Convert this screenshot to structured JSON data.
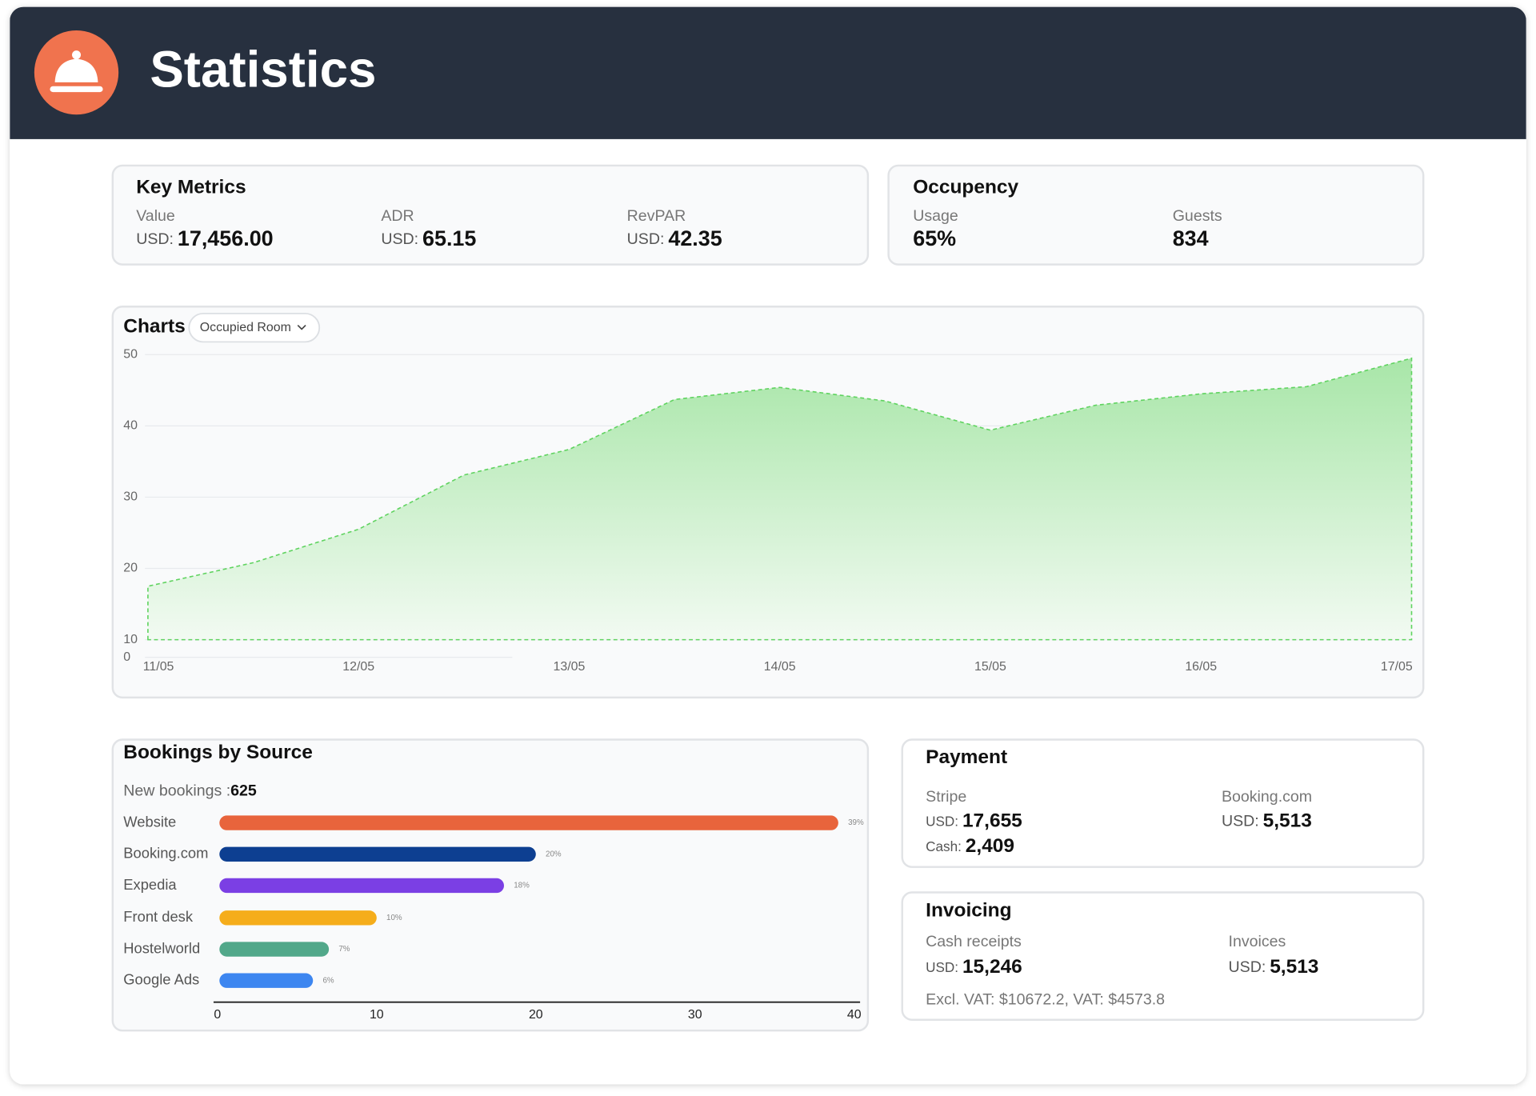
{
  "header": {
    "title": "Statistics"
  },
  "key_metrics": {
    "title": "Key Metrics",
    "items": [
      {
        "label": "Value",
        "currency": "USD:",
        "value": "17,456.00"
      },
      {
        "label": "ADR",
        "currency": "USD:",
        "value": "65.15"
      },
      {
        "label": "RevPAR",
        "currency": "USD:",
        "value": "42.35"
      }
    ]
  },
  "occupancy": {
    "title": "Occupency",
    "items": [
      {
        "label": "Usage",
        "value": "65%"
      },
      {
        "label": "Guests",
        "value": "834"
      }
    ]
  },
  "chart_data": [
    {
      "type": "area",
      "title": "Charts",
      "filter": "Occupied Room",
      "categories": [
        "11/05",
        null,
        "12/05",
        null,
        "13/05",
        null,
        "14/05",
        null,
        "15/05",
        null,
        "16/05",
        null,
        "17/05"
      ],
      "series": [
        {
          "color": "#5fd35f",
          "values": [
            17.5,
            20.8,
            25.5,
            33.1,
            36.7,
            43.7,
            45.4,
            43.5,
            39.4,
            42.9,
            44.5,
            45.5,
            49.5
          ]
        }
      ],
      "ylim": [
        10,
        50
      ],
      "yticks": [
        10,
        20,
        30,
        40,
        50
      ],
      "y_origin_label": "0",
      "grid": true
    },
    {
      "type": "hbar",
      "title": "Bookings by Source",
      "subtitle_label": "New bookings :",
      "subtitle_value": "625",
      "categories": [
        "Website",
        "Booking.com",
        "Expedia",
        "Front desk",
        "Hostelworld",
        "Google Ads"
      ],
      "values": [
        39,
        20,
        18,
        10,
        7,
        6
      ],
      "value_labels": [
        "39%",
        "20%",
        "18%",
        "10%",
        "7%",
        "6%"
      ],
      "colors": [
        "#e8643c",
        "#0d3f91",
        "#7b3fe4",
        "#f5ad1b",
        "#52a88a",
        "#3d86f0"
      ],
      "xlim": [
        0,
        40
      ],
      "xticks": [
        0,
        10,
        20,
        30,
        40
      ]
    }
  ],
  "payment": {
    "title": "Payment",
    "stripe": {
      "label": "Stripe",
      "currency": "USD:",
      "value": "17,655",
      "cash_label": "Cash:",
      "cash_value": "2,409"
    },
    "booking": {
      "label": "Booking.com",
      "currency": "USD:",
      "value": "5,513"
    }
  },
  "invoicing": {
    "title": "Invoicing",
    "cash_receipts": {
      "label": "Cash receipts",
      "currency": "USD:",
      "value": "15,246"
    },
    "invoices": {
      "label": "Invoices",
      "currency": "USD:",
      "value": "5,513"
    },
    "note": "Excl. VAT: $10672.2, VAT: $4573.8"
  }
}
